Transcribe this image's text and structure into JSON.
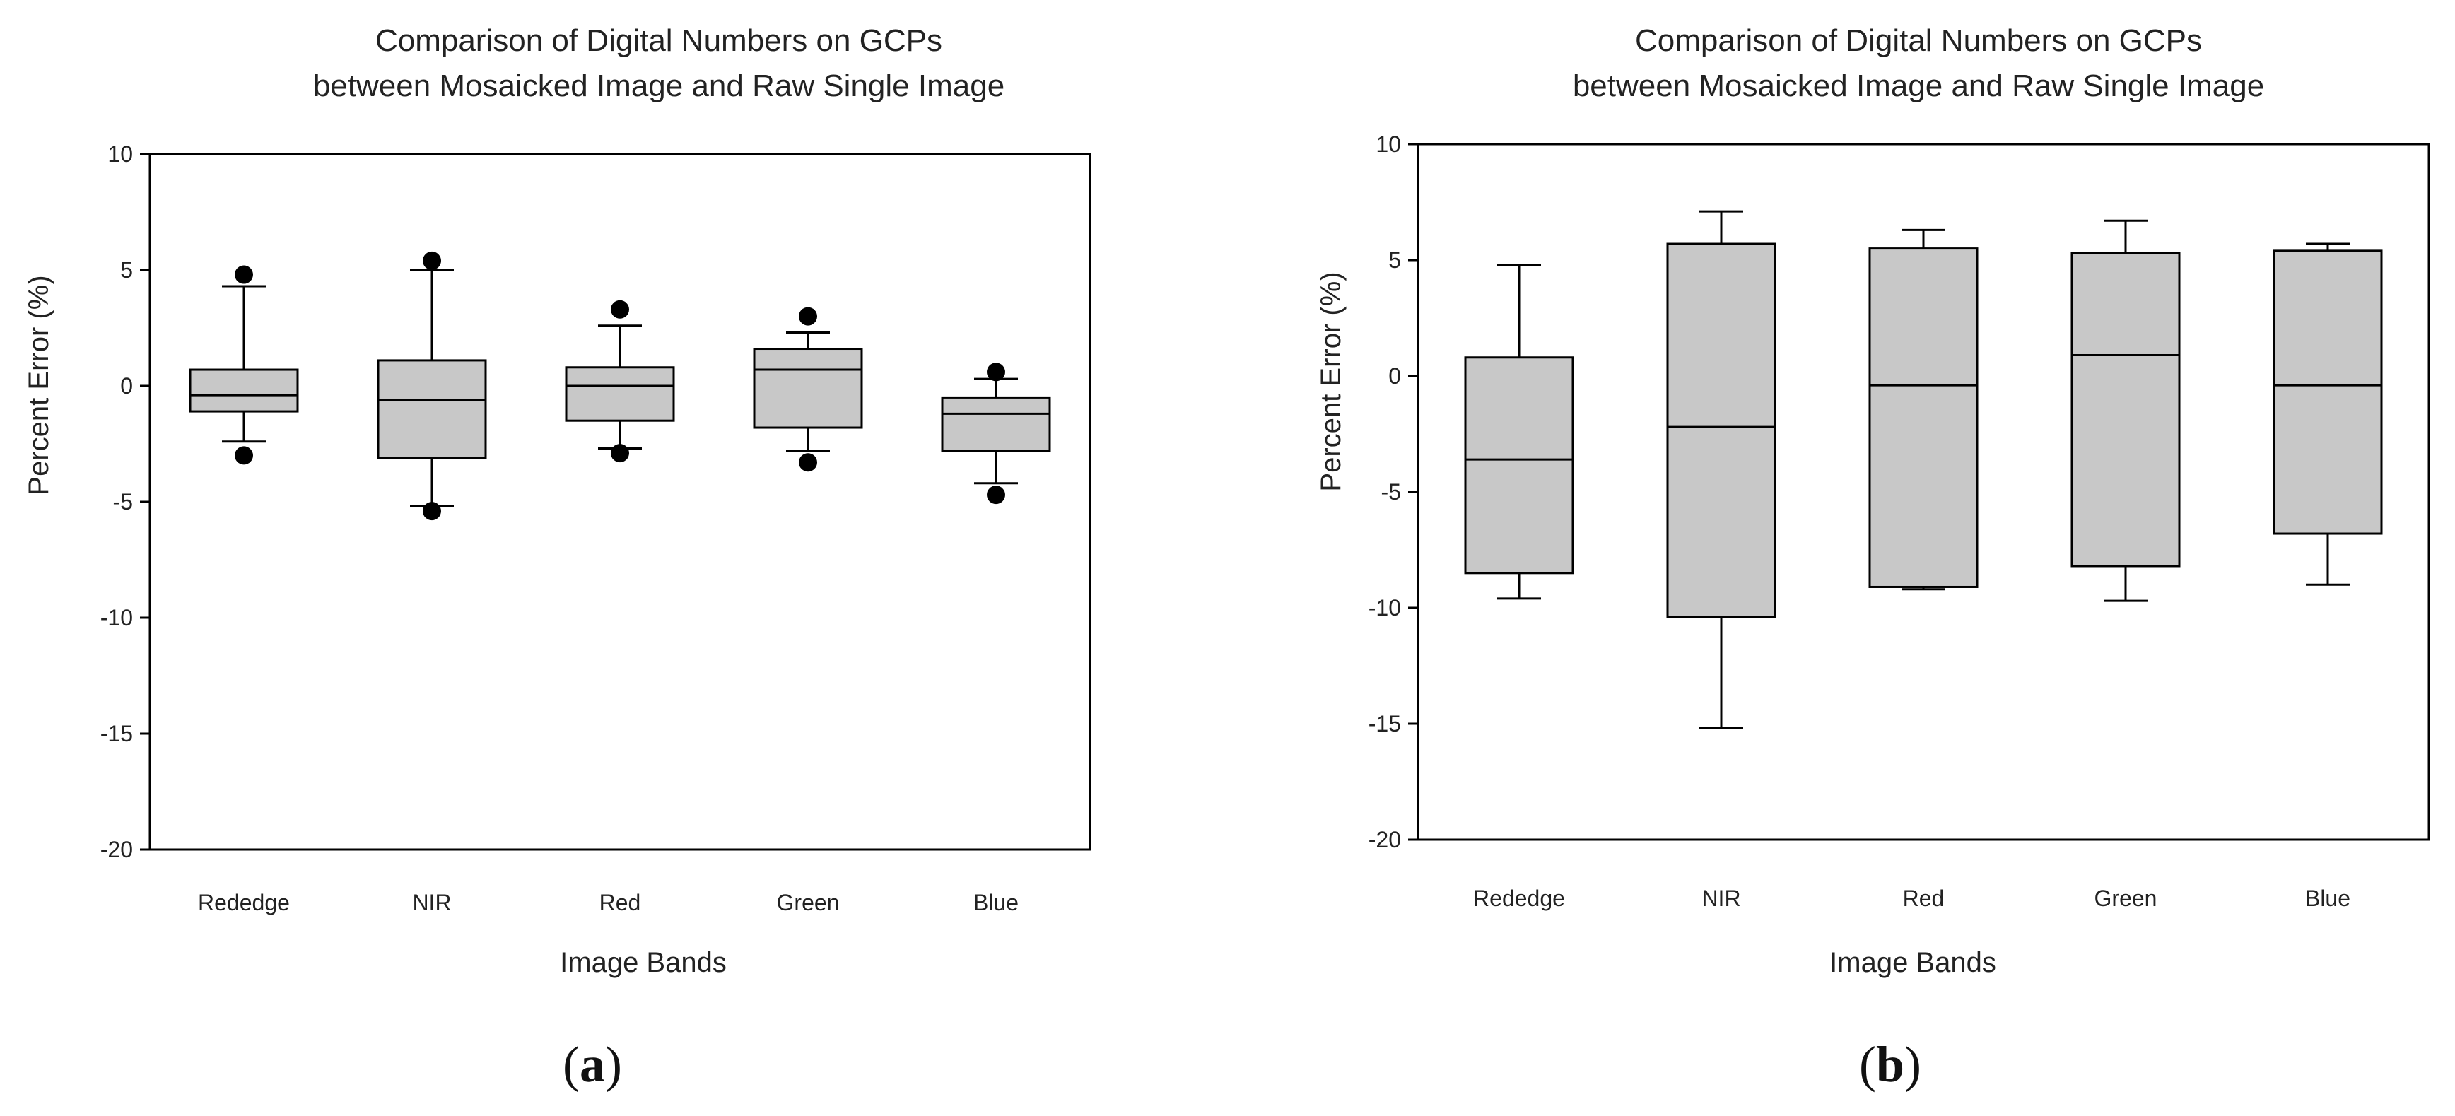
{
  "figure": {
    "colors": {
      "box_fill": "#c8c8c8",
      "stroke": "#000000",
      "text": "#222222"
    }
  },
  "chart_data": [
    {
      "panel": "a",
      "type": "box",
      "title_lines": [
        "Comparison of Digital Numbers on GCPs",
        "between Mosaicked Image and Raw Single Image"
      ],
      "xlabel": "Image Bands",
      "ylabel": "Percent Error (%)",
      "ylim": [
        -20,
        10
      ],
      "yticks": [
        10,
        5,
        0,
        -5,
        -10,
        -15,
        -20
      ],
      "categories": [
        "Rededge",
        "NIR",
        "Red",
        "Green",
        "Blue"
      ],
      "series": [
        {
          "name": "Rededge",
          "whisker_low": -2.4,
          "q1": -1.1,
          "median": -0.4,
          "q3": 0.7,
          "whisker_high": 4.3,
          "outliers": [
            4.8,
            -3.0
          ]
        },
        {
          "name": "NIR",
          "whisker_low": -5.2,
          "q1": -3.1,
          "median": -0.6,
          "q3": 1.1,
          "whisker_high": 5.0,
          "outliers": [
            5.4,
            -5.4
          ]
        },
        {
          "name": "Red",
          "whisker_low": -2.7,
          "q1": -1.5,
          "median": 0.0,
          "q3": 0.8,
          "whisker_high": 2.6,
          "outliers": [
            3.3,
            -2.9
          ]
        },
        {
          "name": "Green",
          "whisker_low": -2.8,
          "q1": -1.8,
          "median": 0.7,
          "q3": 1.6,
          "whisker_high": 2.3,
          "outliers": [
            3.0,
            -3.3
          ]
        },
        {
          "name": "Blue",
          "whisker_low": -4.2,
          "q1": -2.8,
          "median": -1.2,
          "q3": -0.5,
          "whisker_high": 0.3,
          "outliers": [
            0.6,
            -4.7
          ]
        }
      ],
      "caption": {
        "open": "(",
        "letter": "a",
        "close": ")"
      }
    },
    {
      "panel": "b",
      "type": "box",
      "title_lines": [
        "Comparison of Digital Numbers on GCPs",
        "between Mosaicked Image and Raw Single Image"
      ],
      "xlabel": "Image Bands",
      "ylabel": "Percent Error (%)",
      "ylim": [
        -20,
        10
      ],
      "yticks": [
        10,
        5,
        0,
        -5,
        -10,
        -15,
        -20
      ],
      "categories": [
        "Rededge",
        "NIR",
        "Red",
        "Green",
        "Blue"
      ],
      "series": [
        {
          "name": "Rededge",
          "whisker_low": -9.6,
          "q1": -8.5,
          "median": -3.6,
          "q3": 0.8,
          "whisker_high": 4.8,
          "outliers": []
        },
        {
          "name": "NIR",
          "whisker_low": -15.2,
          "q1": -10.4,
          "median": -2.2,
          "q3": 5.7,
          "whisker_high": 7.1,
          "outliers": []
        },
        {
          "name": "Red",
          "whisker_low": -9.2,
          "q1": -9.1,
          "median": -0.4,
          "q3": 5.5,
          "whisker_high": 6.3,
          "outliers": []
        },
        {
          "name": "Green",
          "whisker_low": -9.7,
          "q1": -8.2,
          "median": 0.9,
          "q3": 5.3,
          "whisker_high": 6.7,
          "outliers": []
        },
        {
          "name": "Blue",
          "whisker_low": -9.0,
          "q1": -6.8,
          "median": -0.4,
          "q3": 5.4,
          "whisker_high": 5.7,
          "outliers": []
        }
      ],
      "caption": {
        "open": "(",
        "letter": "b",
        "close": ")"
      }
    }
  ]
}
